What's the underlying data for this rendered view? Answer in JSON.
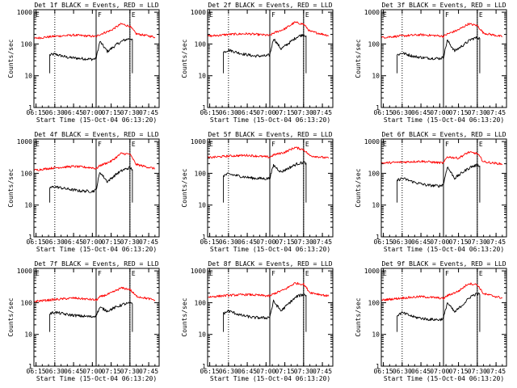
{
  "figure": {
    "xlabel": "Start Time (15-Oct-04 06:13:20)",
    "ylabel": "Counts/sec",
    "x_ticks": [
      "06:15",
      "06:30",
      "06:45",
      "07:00",
      "07:15",
      "07:30",
      "07:45"
    ],
    "y_ticks": [
      "1",
      "10",
      "100",
      "1000"
    ]
  },
  "chart_data": [
    {
      "type": "line",
      "title": "Det 1f BLACK = Events, RED = LLD",
      "xlim": [
        "06:13:20",
        "07:53:20"
      ],
      "ylim": [
        1,
        1200
      ],
      "yscale": "log",
      "markers": {
        "E": [
          "06:13:20",
          "07:30"
        ],
        "F": [
          "07:03"
        ],
        "dotted": [
          "06:30",
          "07:30"
        ],
        "solid": [
          "07:03",
          "07:30"
        ]
      },
      "series": [
        {
          "color": "#000000",
          "x": [
            "06:26",
            "06:30",
            "06:40",
            "06:50",
            "07:00",
            "07:03",
            "07:06",
            "07:12",
            "07:20",
            "07:25",
            "07:30",
            "07:32"
          ],
          "values": [
            45,
            48,
            38,
            35,
            33,
            35,
            120,
            58,
            100,
            130,
            150,
            140
          ]
        },
        {
          "color": "#ff0000",
          "x": [
            "06:13:20",
            "06:30",
            "06:45",
            "07:00",
            "07:03",
            "07:06",
            "07:15",
            "07:23",
            "07:30",
            "07:35",
            "07:50"
          ],
          "values": [
            150,
            175,
            190,
            175,
            170,
            200,
            270,
            430,
            360,
            210,
            165
          ]
        }
      ]
    },
    {
      "type": "line",
      "title": "Det 2f BLACK = Events, RED = LLD",
      "xlim": [
        "06:13:20",
        "07:53:20"
      ],
      "ylim": [
        1,
        1200
      ],
      "yscale": "log",
      "markers": {
        "E": [
          "06:13:20",
          "07:30"
        ],
        "F": [
          "07:03"
        ],
        "dotted": [
          "06:30",
          "07:30"
        ],
        "solid": [
          "07:03",
          "07:30"
        ]
      },
      "series": [
        {
          "color": "#000000",
          "x": [
            "06:26",
            "06:30",
            "06:40",
            "06:50",
            "07:00",
            "07:03",
            "07:06",
            "07:12",
            "07:20",
            "07:25",
            "07:30",
            "07:32"
          ],
          "values": [
            55,
            65,
            50,
            42,
            42,
            45,
            150,
            70,
            120,
            170,
            200,
            180
          ]
        },
        {
          "color": "#ff0000",
          "x": [
            "06:13:20",
            "06:30",
            "06:45",
            "07:00",
            "07:03",
            "07:06",
            "07:15",
            "07:23",
            "07:30",
            "07:35",
            "07:50"
          ],
          "values": [
            175,
            200,
            210,
            190,
            185,
            220,
            300,
            480,
            420,
            250,
            185
          ]
        }
      ]
    },
    {
      "type": "line",
      "title": "Det 3f BLACK = Events, RED = LLD",
      "xlim": [
        "06:13:20",
        "07:53:20"
      ],
      "ylim": [
        1,
        1200
      ],
      "yscale": "log",
      "markers": {
        "E": [
          "06:13:20",
          "07:30"
        ],
        "F": [
          "07:03"
        ],
        "dotted": [
          "06:30",
          "07:30"
        ],
        "solid": [
          "07:03",
          "07:30"
        ]
      },
      "series": [
        {
          "color": "#000000",
          "x": [
            "06:26",
            "06:30",
            "06:40",
            "06:50",
            "07:00",
            "07:03",
            "07:06",
            "07:12",
            "07:20",
            "07:25",
            "07:30",
            "07:32"
          ],
          "values": [
            45,
            52,
            40,
            36,
            35,
            38,
            130,
            60,
            100,
            140,
            160,
            150
          ]
        },
        {
          "color": "#ff0000",
          "x": [
            "06:13:20",
            "06:30",
            "06:45",
            "07:00",
            "07:03",
            "07:06",
            "07:15",
            "07:23",
            "07:30",
            "07:35",
            "07:50"
          ],
          "values": [
            160,
            180,
            195,
            180,
            175,
            205,
            280,
            430,
            380,
            220,
            170
          ]
        }
      ]
    },
    {
      "type": "line",
      "title": "Det 4f BLACK = Events, RED = LLD",
      "xlim": [
        "06:13:20",
        "07:53:20"
      ],
      "ylim": [
        1,
        1200
      ],
      "yscale": "log",
      "markers": {
        "E": [
          "06:13:20",
          "07:30"
        ],
        "F": [
          "07:03"
        ],
        "dotted": [
          "06:30",
          "07:30"
        ],
        "solid": [
          "07:03",
          "07:30"
        ]
      },
      "series": [
        {
          "color": "#000000",
          "x": [
            "06:26",
            "06:30",
            "06:40",
            "06:50",
            "07:00",
            "07:03",
            "07:06",
            "07:12",
            "07:20",
            "07:25",
            "07:30",
            "07:32"
          ],
          "values": [
            35,
            38,
            32,
            28,
            27,
            30,
            110,
            55,
            100,
            130,
            150,
            130
          ]
        },
        {
          "color": "#ff0000",
          "x": [
            "06:13:20",
            "06:30",
            "06:45",
            "07:00",
            "07:03",
            "07:06",
            "07:15",
            "07:23",
            "07:30",
            "07:35",
            "07:50"
          ],
          "values": [
            125,
            150,
            165,
            150,
            140,
            175,
            240,
            420,
            400,
            190,
            140
          ]
        }
      ]
    },
    {
      "type": "line",
      "title": "Det 5f BLACK = Events, RED = LLD",
      "xlim": [
        "06:13:20",
        "07:53:20"
      ],
      "ylim": [
        1,
        1200
      ],
      "yscale": "log",
      "markers": {
        "E": [
          "06:13:20",
          "07:30"
        ],
        "F": [
          "07:03"
        ],
        "dotted": [
          "06:30",
          "07:30"
        ],
        "solid": [
          "07:03",
          "07:30"
        ]
      },
      "series": [
        {
          "color": "#000000",
          "x": [
            "06:26",
            "06:30",
            "06:40",
            "06:50",
            "07:00",
            "07:03",
            "07:06",
            "07:12",
            "07:20",
            "07:25",
            "07:30",
            "07:32"
          ],
          "values": [
            85,
            95,
            80,
            70,
            68,
            70,
            180,
            110,
            160,
            200,
            220,
            210
          ]
        },
        {
          "color": "#ff0000",
          "x": [
            "06:13:20",
            "06:30",
            "06:45",
            "07:00",
            "07:03",
            "07:06",
            "07:15",
            "07:23",
            "07:30",
            "07:35",
            "07:50"
          ],
          "values": [
            310,
            350,
            370,
            330,
            320,
            380,
            460,
            650,
            560,
            360,
            300
          ]
        }
      ]
    },
    {
      "type": "line",
      "title": "Det 6f BLACK = Events, RED = LLD",
      "xlim": [
        "06:13:20",
        "07:53:20"
      ],
      "ylim": [
        1,
        1200
      ],
      "yscale": "log",
      "markers": {
        "E": [
          "06:13:20",
          "07:30"
        ],
        "F": [
          "07:03"
        ],
        "dotted": [
          "06:30",
          "07:30"
        ],
        "solid": [
          "07:03",
          "07:30"
        ]
      },
      "series": [
        {
          "color": "#000000",
          "x": [
            "06:26",
            "06:30",
            "06:40",
            "06:50",
            "07:00",
            "07:03",
            "07:06",
            "07:12",
            "07:20",
            "07:25",
            "07:30",
            "07:32"
          ],
          "values": [
            60,
            70,
            52,
            42,
            40,
            45,
            160,
            70,
            120,
            160,
            180,
            170
          ]
        },
        {
          "color": "#ff0000",
          "x": [
            "06:13:20",
            "06:30",
            "06:45",
            "07:00",
            "07:03",
            "07:06",
            "07:15",
            "07:23",
            "07:30",
            "07:35",
            "07:50"
          ],
          "values": [
            210,
            225,
            240,
            215,
            210,
            330,
            300,
            460,
            420,
            230,
            195
          ]
        }
      ]
    },
    {
      "type": "line",
      "title": "Det 7f BLACK = Events, RED = LLD",
      "xlim": [
        "06:13:20",
        "07:53:20"
      ],
      "ylim": [
        1,
        1200
      ],
      "yscale": "log",
      "markers": {
        "E": [
          "06:13:20",
          "07:30"
        ],
        "F": [
          "07:03"
        ],
        "dotted": [
          "06:30",
          "07:30"
        ],
        "solid": [
          "07:03",
          "07:30"
        ]
      },
      "series": [
        {
          "color": "#000000",
          "x": [
            "06:26",
            "06:30",
            "06:40",
            "06:50",
            "07:00",
            "07:03",
            "07:06",
            "07:12",
            "07:20",
            "07:25",
            "07:30",
            "07:32"
          ],
          "values": [
            45,
            50,
            42,
            38,
            36,
            40,
            70,
            55,
            75,
            90,
            95,
            90
          ]
        },
        {
          "color": "#ff0000",
          "x": [
            "06:13:20",
            "06:30",
            "06:45",
            "07:00",
            "07:03",
            "07:06",
            "07:15",
            "07:23",
            "07:30",
            "07:35",
            "07:50"
          ],
          "values": [
            110,
            125,
            140,
            125,
            120,
            150,
            200,
            290,
            260,
            160,
            120
          ]
        }
      ]
    },
    {
      "type": "line",
      "title": "Det 8f BLACK = Events, RED = LLD",
      "xlim": [
        "06:13:20",
        "07:53:20"
      ],
      "ylim": [
        1,
        1200
      ],
      "yscale": "log",
      "markers": {
        "E": [
          "06:13:20",
          "07:30"
        ],
        "F": [
          "07:03"
        ],
        "dotted": [
          "06:30",
          "07:30"
        ],
        "solid": [
          "07:03",
          "07:30"
        ]
      },
      "series": [
        {
          "color": "#000000",
          "x": [
            "06:26",
            "06:30",
            "06:40",
            "06:50",
            "07:00",
            "07:03",
            "07:06",
            "07:12",
            "07:20",
            "07:25",
            "07:30",
            "07:32"
          ],
          "values": [
            45,
            55,
            40,
            34,
            33,
            36,
            110,
            55,
            110,
            160,
            180,
            170
          ]
        },
        {
          "color": "#ff0000",
          "x": [
            "06:13:20",
            "06:30",
            "06:45",
            "07:00",
            "07:03",
            "07:06",
            "07:15",
            "07:23",
            "07:30",
            "07:35",
            "07:50"
          ],
          "values": [
            150,
            170,
            180,
            165,
            160,
            190,
            260,
            410,
            380,
            210,
            160
          ]
        }
      ]
    },
    {
      "type": "line",
      "title": "Det 9f BLACK = Events, RED = LLD",
      "xlim": [
        "06:13:20",
        "07:53:20"
      ],
      "ylim": [
        1,
        1200
      ],
      "yscale": "log",
      "markers": {
        "E": [
          "06:13:20",
          "07:30"
        ],
        "F": [
          "07:03"
        ],
        "dotted": [
          "06:30",
          "07:30"
        ],
        "solid": [
          "07:03",
          "07:30"
        ]
      },
      "series": [
        {
          "color": "#000000",
          "x": [
            "06:26",
            "06:30",
            "06:40",
            "06:50",
            "07:00",
            "07:03",
            "07:06",
            "07:12",
            "07:20",
            "07:25",
            "07:30",
            "07:32"
          ],
          "values": [
            40,
            48,
            35,
            30,
            29,
            32,
            100,
            50,
            100,
            160,
            190,
            180
          ]
        },
        {
          "color": "#ff0000",
          "x": [
            "06:13:20",
            "06:30",
            "06:45",
            "07:00",
            "07:03",
            "07:06",
            "07:15",
            "07:23",
            "07:30",
            "07:35",
            "07:50"
          ],
          "values": [
            120,
            140,
            155,
            140,
            135,
            165,
            230,
            400,
            370,
            190,
            140
          ]
        }
      ]
    }
  ]
}
